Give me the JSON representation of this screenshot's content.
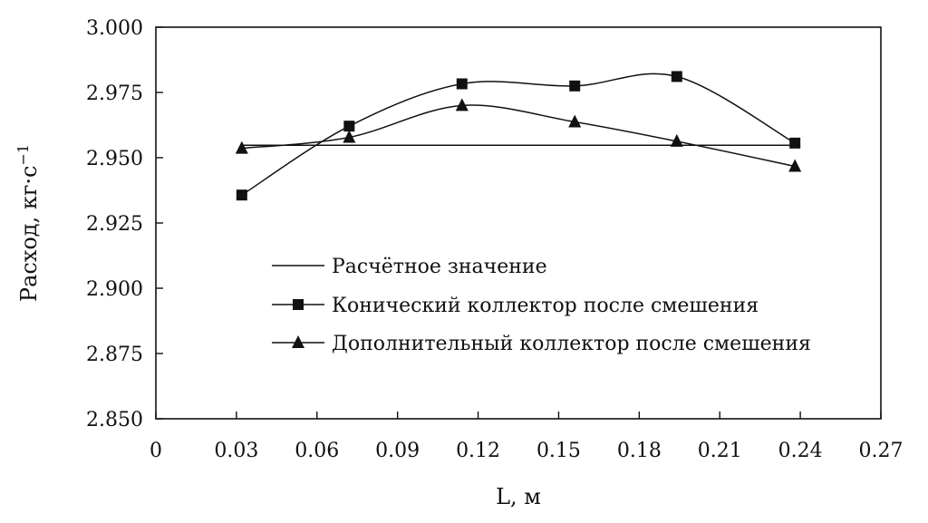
{
  "chart_data": {
    "type": "line",
    "xlabel": "L, м",
    "ylabel": "Расход, кг·с",
    "ylabel_superscript": "−1",
    "xlim": [
      0,
      0.27
    ],
    "ylim": [
      2.85,
      3.0
    ],
    "x_ticks": [
      "0",
      "0.03",
      "0.06",
      "0.09",
      "0.12",
      "0.15",
      "0.18",
      "0.21",
      "0.24",
      "0.27"
    ],
    "y_ticks": [
      "3.000",
      "2.975",
      "2.950",
      "2.925",
      "2.900",
      "2.875",
      "2.850"
    ],
    "grid": false,
    "legend_position": "lower-center",
    "series": [
      {
        "name": "Расчётное значение",
        "marker": "none",
        "smooth": false,
        "x": [
          0.032,
          0.238
        ],
        "y": [
          2.9548,
          2.9548
        ]
      },
      {
        "name": "Конический коллектор после смешения",
        "marker": "square",
        "smooth": true,
        "x": [
          0.032,
          0.072,
          0.114,
          0.156,
          0.194,
          0.238
        ],
        "y": [
          2.9357,
          2.9621,
          2.9783,
          2.9775,
          2.9811,
          2.9556
        ]
      },
      {
        "name": "Дополнительный коллектор после смешения",
        "marker": "triangle",
        "smooth": true,
        "x": [
          0.032,
          0.072,
          0.114,
          0.156,
          0.194,
          0.238
        ],
        "y": [
          2.9536,
          2.9578,
          2.97,
          2.9637,
          2.9563,
          2.9467
        ]
      }
    ]
  }
}
